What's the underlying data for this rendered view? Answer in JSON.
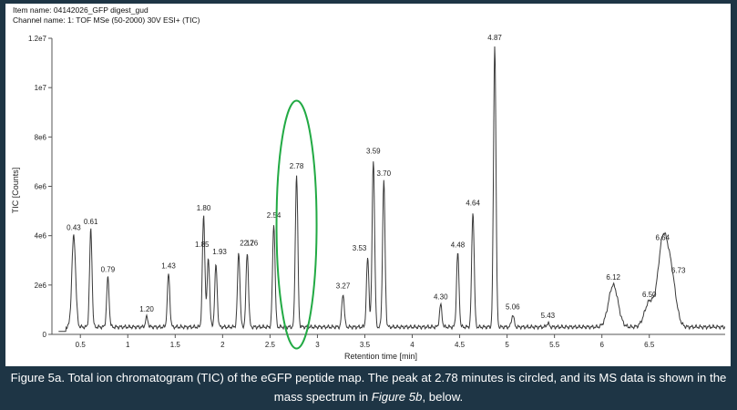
{
  "header": {
    "item_name": "Item name: 04142026_GFP digest_gud",
    "channel_name": "Channel name: 1: TOF MSe (50-2000) 30V ESI+ (TIC)"
  },
  "caption": {
    "part1": "Figure 5a. Total ion chromatogram (TIC) of the eGFP peptide map. The peak at 2.78 minutes is circled, and its MS data is shown in the mass spectrum in ",
    "emph": "Figure 5b",
    "part2": ", below."
  },
  "colors": {
    "trace": "#3a3a3a",
    "circle": "#22aa44",
    "background": "#1e3545"
  },
  "chart_data": {
    "type": "line",
    "xlabel": "Retention time [min]",
    "ylabel": "TIC [Counts]",
    "xlim": [
      0.2,
      7.3
    ],
    "ylim": [
      0,
      12000000
    ],
    "xticks": [
      0.5,
      1,
      1.5,
      2,
      2.5,
      3,
      3.5,
      4,
      4.5,
      5,
      5.5,
      6,
      6.5
    ],
    "xtick_labels": [
      "0.5",
      "1",
      "1.5",
      "2",
      "2.5",
      "3",
      "3.5",
      "4",
      "4.5",
      "5",
      "5.5",
      "6",
      "6.5"
    ],
    "yticks": [
      0,
      2000000,
      4000000,
      6000000,
      8000000,
      10000000,
      12000000
    ],
    "ytick_labels": [
      "0",
      "2e6",
      "4e6",
      "6e6",
      "8e6",
      "1e7",
      "1.2e7"
    ],
    "baseline": 300000,
    "peaks": [
      {
        "x": 0.43,
        "y": 4000000,
        "label": "0.43"
      },
      {
        "x": 0.61,
        "y": 4250000,
        "label": "0.61"
      },
      {
        "x": 0.79,
        "y": 2300000,
        "label": "0.79"
      },
      {
        "x": 1.2,
        "y": 700000,
        "label": "1.20"
      },
      {
        "x": 1.43,
        "y": 2450000,
        "label": "1.43"
      },
      {
        "x": 1.8,
        "y": 4800000,
        "label": "1.80"
      },
      {
        "x": 1.85,
        "y": 3100000,
        "label": "1.85"
      },
      {
        "x": 1.93,
        "y": 2800000,
        "label": "1.93"
      },
      {
        "x": 2.17,
        "y": 3300000,
        "label": "2.17"
      },
      {
        "x": 2.26,
        "y": 3300000,
        "label": "2.26"
      },
      {
        "x": 2.54,
        "y": 4500000,
        "label": "2.54"
      },
      {
        "x": 2.78,
        "y": 6500000,
        "label": "2.78"
      },
      {
        "x": 3.27,
        "y": 1650000,
        "label": "3.27"
      },
      {
        "x": 3.53,
        "y": 3100000,
        "label": "3.53"
      },
      {
        "x": 3.59,
        "y": 7100000,
        "label": "3.59"
      },
      {
        "x": 3.7,
        "y": 6200000,
        "label": "3.70"
      },
      {
        "x": 4.3,
        "y": 1200000,
        "label": "4.30"
      },
      {
        "x": 4.48,
        "y": 3300000,
        "label": "4.48"
      },
      {
        "x": 4.64,
        "y": 5000000,
        "label": "4.64"
      },
      {
        "x": 4.87,
        "y": 11700000,
        "label": "4.87"
      },
      {
        "x": 5.06,
        "y": 800000,
        "label": "5.06"
      },
      {
        "x": 5.43,
        "y": 450000,
        "label": "5.43"
      },
      {
        "x": 6.12,
        "y": 2000000,
        "label": "6.12"
      },
      {
        "x": 6.5,
        "y": 1300000,
        "label": "6.50"
      },
      {
        "x": 6.64,
        "y": 3600000,
        "label": "6.64"
      },
      {
        "x": 6.73,
        "y": 2300000,
        "label": "6.73"
      }
    ],
    "highlight": {
      "x": 2.78,
      "label": "circled peak"
    }
  }
}
